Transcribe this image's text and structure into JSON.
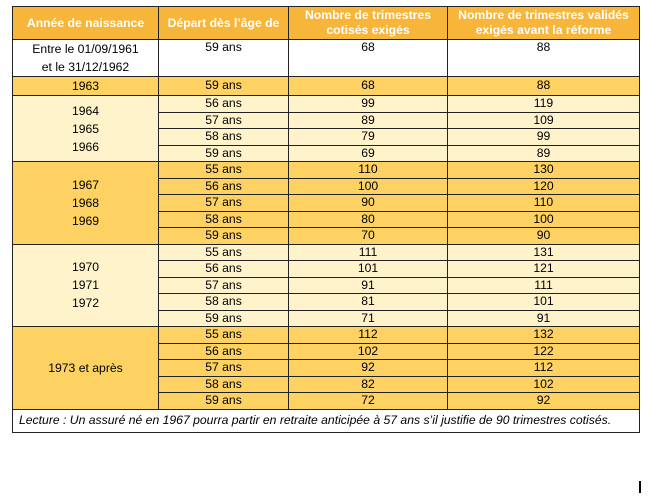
{
  "headers": {
    "birth_year": "Année de naissance",
    "departure_age": "Départ dès l’âge de",
    "quarters_contributed_1": "Nombre de trimestres",
    "quarters_contributed_2": "cotisés exigés",
    "quarters_validated_1": "Nombre de trimestres validés",
    "quarters_validated_2": "exigés avant la réforme"
  },
  "groups": [
    {
      "year_lines": [
        "Entre le 01/09/1961",
        "et le 31/12/1962"
      ],
      "shade": "white",
      "rows": [
        {
          "age": "59 ans",
          "contributed": "68",
          "validated": "88"
        }
      ]
    },
    {
      "year_lines": [
        "1963"
      ],
      "shade": "dark",
      "rows": [
        {
          "age": "59 ans",
          "contributed": "68",
          "validated": "88"
        }
      ]
    },
    {
      "year_lines": [
        "1964",
        "1965",
        "1966"
      ],
      "shade": "light",
      "rows": [
        {
          "age": "56 ans",
          "contributed": "99",
          "validated": "119"
        },
        {
          "age": "57 ans",
          "contributed": "89",
          "validated": "109"
        },
        {
          "age": "58 ans",
          "contributed": "79",
          "validated": "99"
        },
        {
          "age": "59 ans",
          "contributed": "69",
          "validated": "89"
        }
      ]
    },
    {
      "year_lines": [
        "1967",
        "1968",
        "1969"
      ],
      "shade": "dark",
      "rows": [
        {
          "age": "55 ans",
          "contributed": "110",
          "validated": "130"
        },
        {
          "age": "56 ans",
          "contributed": "100",
          "validated": "120"
        },
        {
          "age": "57 ans",
          "contributed": "90",
          "validated": "110"
        },
        {
          "age": "58 ans",
          "contributed": "80",
          "validated": "100"
        },
        {
          "age": "59 ans",
          "contributed": "70",
          "validated": "90"
        }
      ]
    },
    {
      "year_lines": [
        "1970",
        "1971",
        "1972"
      ],
      "shade": "light",
      "rows": [
        {
          "age": "55 ans",
          "contributed": "111",
          "validated": "131"
        },
        {
          "age": "56 ans",
          "contributed": "101",
          "validated": "121"
        },
        {
          "age": "57 ans",
          "contributed": "91",
          "validated": "111"
        },
        {
          "age": "58 ans",
          "contributed": "81",
          "validated": "101"
        },
        {
          "age": "59 ans",
          "contributed": "71",
          "validated": "91"
        }
      ]
    },
    {
      "year_lines": [
        "1973 et après"
      ],
      "shade": "dark",
      "rows": [
        {
          "age": "55 ans",
          "contributed": "112",
          "validated": "132"
        },
        {
          "age": "56 ans",
          "contributed": "102",
          "validated": "122"
        },
        {
          "age": "57 ans",
          "contributed": "92",
          "validated": "112"
        },
        {
          "age": "58 ans",
          "contributed": "82",
          "validated": "102"
        },
        {
          "age": "59 ans",
          "contributed": "72",
          "validated": "92"
        }
      ]
    }
  ],
  "note": "Lecture : Un assuré né en 1967 pourra partir en retraite anticipée à 57 ans s’il justifie de 90 trimestres cotisés.",
  "colors": {
    "header_bg": "#f7b539",
    "header_text": "#ffffff",
    "dark_row": "#fdd262",
    "light_row": "#fff3cc",
    "border": "#222222"
  }
}
